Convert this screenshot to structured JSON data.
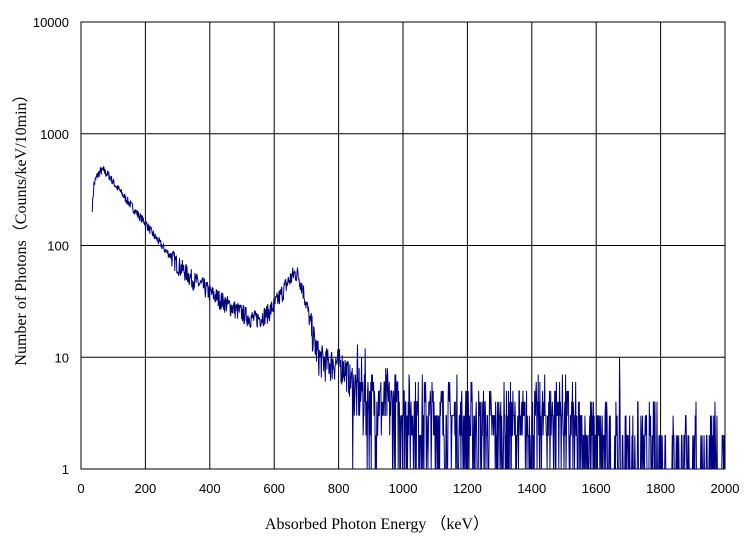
{
  "chart_data": {
    "type": "line",
    "title": "",
    "xlabel": "Absorbed Photon Energy （keV）",
    "ylabel": "Number  of Photons（Counts/keV/10min）",
    "xlim": [
      0,
      2000
    ],
    "ylim": [
      1,
      10000
    ],
    "yscale": "log",
    "grid": true,
    "legend": "none",
    "x_ticks": [
      "0",
      "200",
      "400",
      "600",
      "800",
      "1000",
      "1200",
      "1400",
      "1600",
      "1800",
      "2000"
    ],
    "y_ticks": [
      "1",
      "10",
      "100",
      "1000",
      "10000"
    ],
    "series": [
      {
        "color": "#000080",
        "points": [
          [
            35,
            220
          ],
          [
            40,
            350
          ],
          [
            50,
            420
          ],
          [
            60,
            460
          ],
          [
            70,
            470
          ],
          [
            80,
            440
          ],
          [
            90,
            410
          ],
          [
            100,
            370
          ],
          [
            120,
            310
          ],
          [
            140,
            260
          ],
          [
            160,
            220
          ],
          [
            180,
            185
          ],
          [
            200,
            160
          ],
          [
            220,
            130
          ],
          [
            240,
            110
          ],
          [
            260,
            92
          ],
          [
            280,
            80
          ],
          [
            300,
            68
          ],
          [
            320,
            60
          ],
          [
            340,
            52
          ],
          [
            360,
            47
          ],
          [
            380,
            43
          ],
          [
            400,
            38
          ],
          [
            420,
            35
          ],
          [
            440,
            32
          ],
          [
            460,
            29
          ],
          [
            480,
            27
          ],
          [
            500,
            25
          ],
          [
            520,
            23
          ],
          [
            540,
            22
          ],
          [
            560,
            23
          ],
          [
            580,
            25
          ],
          [
            600,
            29
          ],
          [
            620,
            36
          ],
          [
            640,
            46
          ],
          [
            660,
            55
          ],
          [
            670,
            57
          ],
          [
            680,
            50
          ],
          [
            690,
            40
          ],
          [
            700,
            30
          ],
          [
            710,
            22
          ],
          [
            720,
            16
          ],
          [
            730,
            12
          ],
          [
            740,
            10
          ],
          [
            760,
            9
          ],
          [
            780,
            9
          ],
          [
            800,
            9
          ],
          [
            820,
            8
          ],
          [
            840,
            6
          ],
          [
            860,
            5
          ],
          [
            880,
            5
          ],
          [
            900,
            4
          ],
          [
            950,
            4
          ],
          [
            1000,
            3.5
          ],
          [
            1050,
            3
          ],
          [
            1100,
            3
          ],
          [
            1150,
            2.8
          ],
          [
            1200,
            2.6
          ],
          [
            1250,
            2.5
          ],
          [
            1300,
            2.4
          ],
          [
            1350,
            2.4
          ],
          [
            1400,
            2.5
          ],
          [
            1450,
            3
          ],
          [
            1480,
            3.5
          ],
          [
            1500,
            3
          ],
          [
            1520,
            2.5
          ],
          [
            1550,
            2
          ],
          [
            1600,
            1.6
          ],
          [
            1650,
            1.4
          ],
          [
            1700,
            1.3
          ],
          [
            1750,
            1.2
          ],
          [
            1800,
            1.25
          ],
          [
            1850,
            1.1
          ],
          [
            1900,
            1.05
          ],
          [
            1950,
            1.02
          ],
          [
            2000,
            1.0
          ]
        ]
      }
    ]
  }
}
